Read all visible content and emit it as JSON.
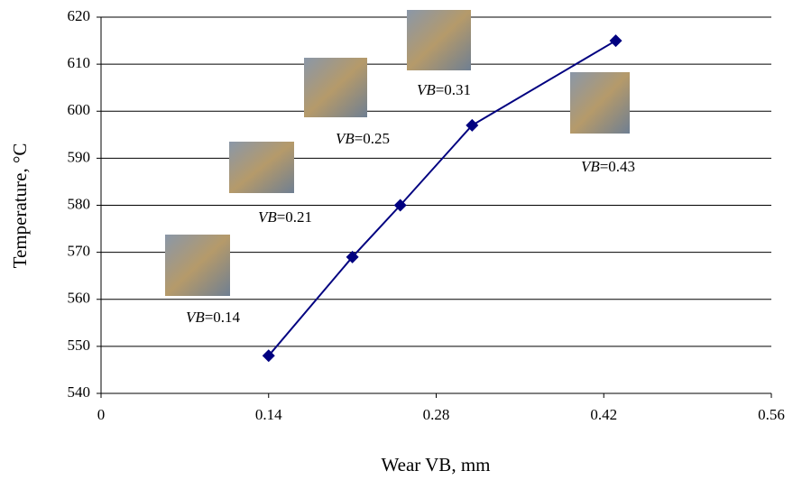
{
  "chart_data": {
    "type": "line",
    "x_label": "Wear VB, mm",
    "y_label": "Temperature, °C",
    "x": [
      0.14,
      0.21,
      0.25,
      0.31,
      0.43
    ],
    "series": [
      {
        "color": "#000080",
        "values": [
          548,
          569,
          580,
          597,
          615
        ]
      }
    ],
    "xlim": [
      0,
      0.56
    ],
    "xticks": [
      0,
      0.14,
      0.28,
      0.42,
      0.56
    ],
    "ylim": [
      540,
      620
    ],
    "yticks": [
      540,
      550,
      560,
      570,
      580,
      590,
      600,
      610,
      620
    ],
    "grid": true,
    "annotations": [
      {
        "italic": "VB",
        "text": "=0.14"
      },
      {
        "italic": "VB",
        "text": "=0.21"
      },
      {
        "italic": "VB",
        "text": "=0.25"
      },
      {
        "italic": "VB",
        "text": "=0.31"
      },
      {
        "italic": "VB",
        "text": "=0.43"
      }
    ]
  }
}
